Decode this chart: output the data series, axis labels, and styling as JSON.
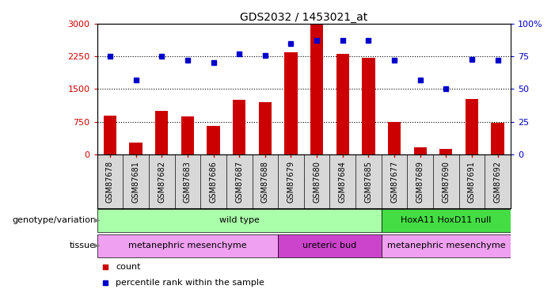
{
  "title": "GDS2032 / 1453021_at",
  "samples": [
    "GSM87678",
    "GSM87681",
    "GSM87682",
    "GSM87683",
    "GSM87686",
    "GSM87687",
    "GSM87688",
    "GSM87679",
    "GSM87680",
    "GSM87684",
    "GSM87685",
    "GSM87677",
    "GSM87689",
    "GSM87690",
    "GSM87691",
    "GSM87692"
  ],
  "counts": [
    900,
    280,
    1000,
    870,
    650,
    1250,
    1200,
    2350,
    2980,
    2300,
    2220,
    750,
    170,
    120,
    1270,
    730
  ],
  "percentiles": [
    75,
    57,
    75,
    72,
    70,
    77,
    76,
    85,
    87,
    87,
    87,
    72,
    57,
    50,
    73,
    72
  ],
  "ylim_left": [
    0,
    3000
  ],
  "ylim_right": [
    0,
    100
  ],
  "yticks_left": [
    0,
    750,
    1500,
    2250,
    3000
  ],
  "yticks_right": [
    0,
    25,
    50,
    75,
    100
  ],
  "bar_color": "#cc0000",
  "dot_color": "#0000cc",
  "genotype_groups": [
    {
      "label": "wild type",
      "start": 0,
      "end": 11,
      "color": "#aaffaa"
    },
    {
      "label": "HoxA11 HoxD11 null",
      "start": 11,
      "end": 16,
      "color": "#44dd44"
    }
  ],
  "tissue_groups": [
    {
      "label": "metanephric mesenchyme",
      "start": 0,
      "end": 7,
      "color": "#f0a0f0"
    },
    {
      "label": "ureteric bud",
      "start": 7,
      "end": 11,
      "color": "#cc44cc"
    },
    {
      "label": "metanephric mesenchyme",
      "start": 11,
      "end": 16,
      "color": "#f0a0f0"
    }
  ],
  "legend_count_color": "#cc0000",
  "legend_pct_color": "#0000cc",
  "legend_count_label": "count",
  "legend_pct_label": "percentile rank within the sample",
  "genotype_label": "genotype/variation",
  "tissue_label": "tissue",
  "xtick_bg_color": "#d8d8d8"
}
